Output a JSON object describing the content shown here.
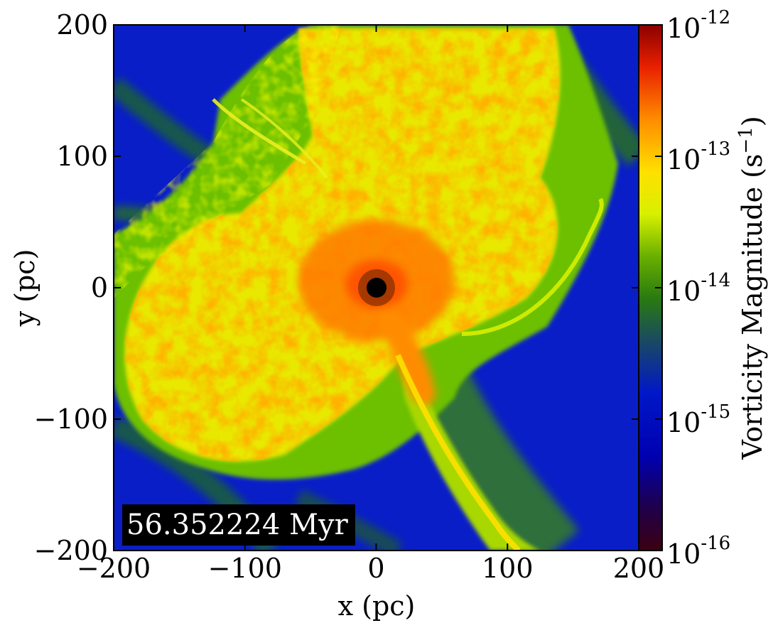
{
  "chart_data": {
    "type": "heatmap",
    "title": "",
    "xlabel": "x  (pc)",
    "ylabel": "y  (pc)",
    "xlim": [
      -200,
      200
    ],
    "ylim": [
      -200,
      200
    ],
    "xticks": [
      -200,
      -100,
      0,
      100,
      200
    ],
    "yticks": [
      -200,
      -100,
      0,
      100,
      200
    ],
    "xtick_labels": [
      "−200",
      "−100",
      "0",
      "100",
      "200"
    ],
    "ytick_labels": [
      "−200",
      "−100",
      "0",
      "100",
      "200"
    ],
    "colorbar": {
      "label": "Vorticity Magnitude  (s",
      "label_exp": "−1",
      "label_close": ")",
      "scale": "log",
      "range": [
        1e-16,
        1e-12
      ],
      "ticks": [
        {
          "base": "10",
          "exp": "-16",
          "value": 1e-16
        },
        {
          "base": "10",
          "exp": "-15",
          "value": 1e-15
        },
        {
          "base": "10",
          "exp": "-14",
          "value": 1e-14
        },
        {
          "base": "10",
          "exp": "-13",
          "value": 1e-13
        },
        {
          "base": "10",
          "exp": "-12",
          "value": 1e-12
        }
      ],
      "colormap": [
        "#3a0010",
        "#1a0060",
        "#0000c8",
        "#1a40b0",
        "#2a7a10",
        "#6ab000",
        "#d8f000",
        "#ffe000",
        "#ff8c00",
        "#e82000",
        "#8a0000"
      ]
    },
    "annotation": "56.352224 Myr",
    "grid": false
  },
  "colors": {
    "background_field": "#0a1ec8",
    "filament_green": "#6cc000",
    "turbulent_yellow": "#e8e800",
    "turbulent_orange": "#ff8a00",
    "hot_red": "#e83000",
    "core_black": "#000000"
  }
}
